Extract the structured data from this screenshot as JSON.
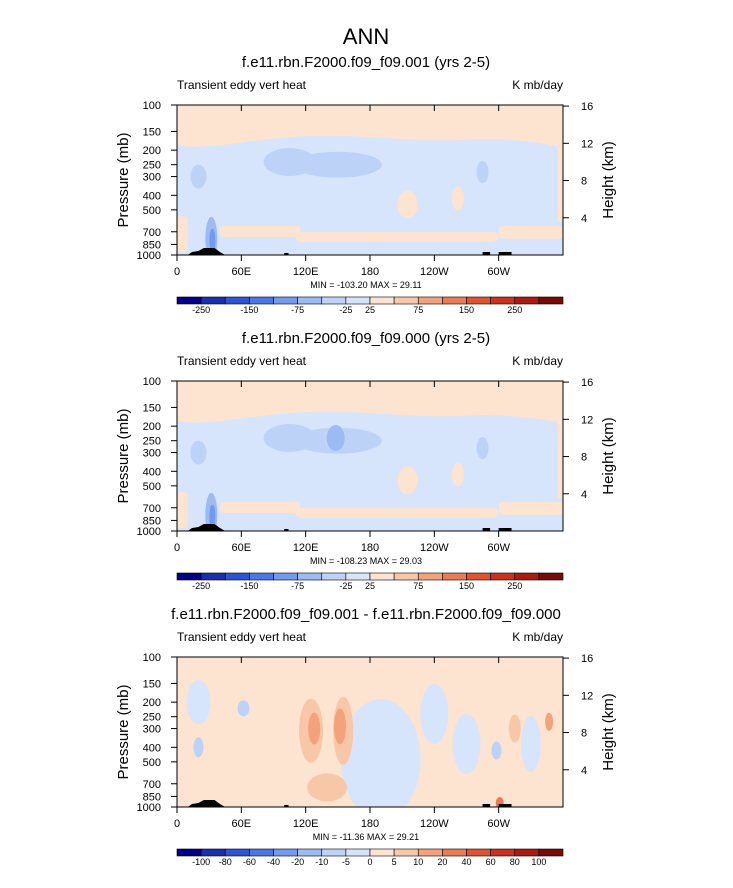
{
  "title": "ANN",
  "chart_data": [
    {
      "type": "heatmap",
      "title": "f.e11.rbn.F2000.f09_f09.001 (yrs 2-5)",
      "left_label": "Transient eddy vert heat",
      "units_label": "K mb/day",
      "ylabel": "Pressure (mb)",
      "ylabel_right": "Height (km)",
      "x_ticks": [
        "0",
        "60E",
        "120E",
        "180",
        "120W",
        "60W"
      ],
      "x_tick_values": [
        0,
        60,
        120,
        180,
        240,
        300
      ],
      "xlim": [
        0,
        360
      ],
      "y_ticks": [
        "100",
        "150",
        "200",
        "250",
        "300",
        "400",
        "500",
        "700",
        "850",
        "1000"
      ],
      "y_tick_values": [
        100,
        150,
        200,
        250,
        300,
        400,
        500,
        700,
        850,
        1000
      ],
      "ylim": [
        1000,
        100
      ],
      "y_ticks_right": [
        "4",
        "8",
        "12",
        "16"
      ],
      "y_tick_right_values": [
        4,
        8,
        12,
        16
      ],
      "minmax_label": "MIN = -103.20  MAX =  29.11",
      "min": -103.2,
      "max": 29.11,
      "colorbar_labels": [
        "-250",
        "-150",
        "-75",
        "-25",
        "25",
        "75",
        "150",
        "250"
      ],
      "levels": [
        -300,
        -250,
        -200,
        -150,
        -100,
        -75,
        -50,
        -25,
        0,
        25,
        50,
        75,
        100,
        150,
        200,
        250,
        300
      ]
    },
    {
      "type": "heatmap",
      "title": "f.e11.rbn.F2000.f09_f09.000 (yrs 2-5)",
      "left_label": "Transient eddy vert heat",
      "units_label": "K mb/day",
      "ylabel": "Pressure (mb)",
      "ylabel_right": "Height (km)",
      "x_ticks": [
        "0",
        "60E",
        "120E",
        "180",
        "120W",
        "60W"
      ],
      "x_tick_values": [
        0,
        60,
        120,
        180,
        240,
        300
      ],
      "xlim": [
        0,
        360
      ],
      "y_ticks": [
        "100",
        "150",
        "200",
        "250",
        "300",
        "400",
        "500",
        "700",
        "850",
        "1000"
      ],
      "y_tick_values": [
        100,
        150,
        200,
        250,
        300,
        400,
        500,
        700,
        850,
        1000
      ],
      "ylim": [
        1000,
        100
      ],
      "y_ticks_right": [
        "4",
        "8",
        "12",
        "16"
      ],
      "y_tick_right_values": [
        4,
        8,
        12,
        16
      ],
      "minmax_label": "MIN = -108.23  MAX =  29.03",
      "min": -108.23,
      "max": 29.03,
      "colorbar_labels": [
        "-250",
        "-150",
        "-75",
        "-25",
        "25",
        "75",
        "150",
        "250"
      ],
      "levels": [
        -300,
        -250,
        -200,
        -150,
        -100,
        -75,
        -50,
        -25,
        0,
        25,
        50,
        75,
        100,
        150,
        200,
        250,
        300
      ]
    },
    {
      "type": "heatmap",
      "title": "f.e11.rbn.F2000.f09_f09.001 - f.e11.rbn.F2000.f09_f09.000",
      "left_label": "Transient eddy vert heat",
      "units_label": "K mb/day",
      "ylabel": "Pressure (mb)",
      "ylabel_right": "Height (km)",
      "x_ticks": [
        "0",
        "60E",
        "120E",
        "180",
        "120W",
        "60W"
      ],
      "x_tick_values": [
        0,
        60,
        120,
        180,
        240,
        300
      ],
      "xlim": [
        0,
        360
      ],
      "y_ticks": [
        "100",
        "150",
        "200",
        "250",
        "300",
        "400",
        "500",
        "700",
        "850",
        "1000"
      ],
      "y_tick_values": [
        100,
        150,
        200,
        250,
        300,
        400,
        500,
        700,
        850,
        1000
      ],
      "ylim": [
        1000,
        100
      ],
      "y_ticks_right": [
        "4",
        "8",
        "12",
        "16"
      ],
      "y_tick_right_values": [
        4,
        8,
        12,
        16
      ],
      "minmax_label": "MIN = -11.36  MAX =  29.21",
      "min": -11.36,
      "max": 29.21,
      "colorbar_labels": [
        "-100",
        "-80",
        "-60",
        "-40",
        "-20",
        "-10",
        "-5",
        "0",
        "5",
        "10",
        "20",
        "40",
        "60",
        "80",
        "100"
      ],
      "levels": [
        -120,
        -100,
        -80,
        -60,
        -40,
        -20,
        -10,
        -5,
        0,
        5,
        10,
        20,
        40,
        60,
        80,
        100,
        120
      ]
    }
  ],
  "colors": {
    "colorbar": [
      "#00008b",
      "#1a2fb0",
      "#2a55d6",
      "#4a78ea",
      "#7399f0",
      "#9cbaf4",
      "#bcd3f7",
      "#d6e5fb",
      "#fde4d0",
      "#f8c7a7",
      "#f3a27c",
      "#ec7b52",
      "#e2522f",
      "#cf3019",
      "#ad1a0e",
      "#7a0a06"
    ],
    "background_neg": "#d6e5fb",
    "background_pos": "#fde4d0",
    "topo": "#000000"
  }
}
